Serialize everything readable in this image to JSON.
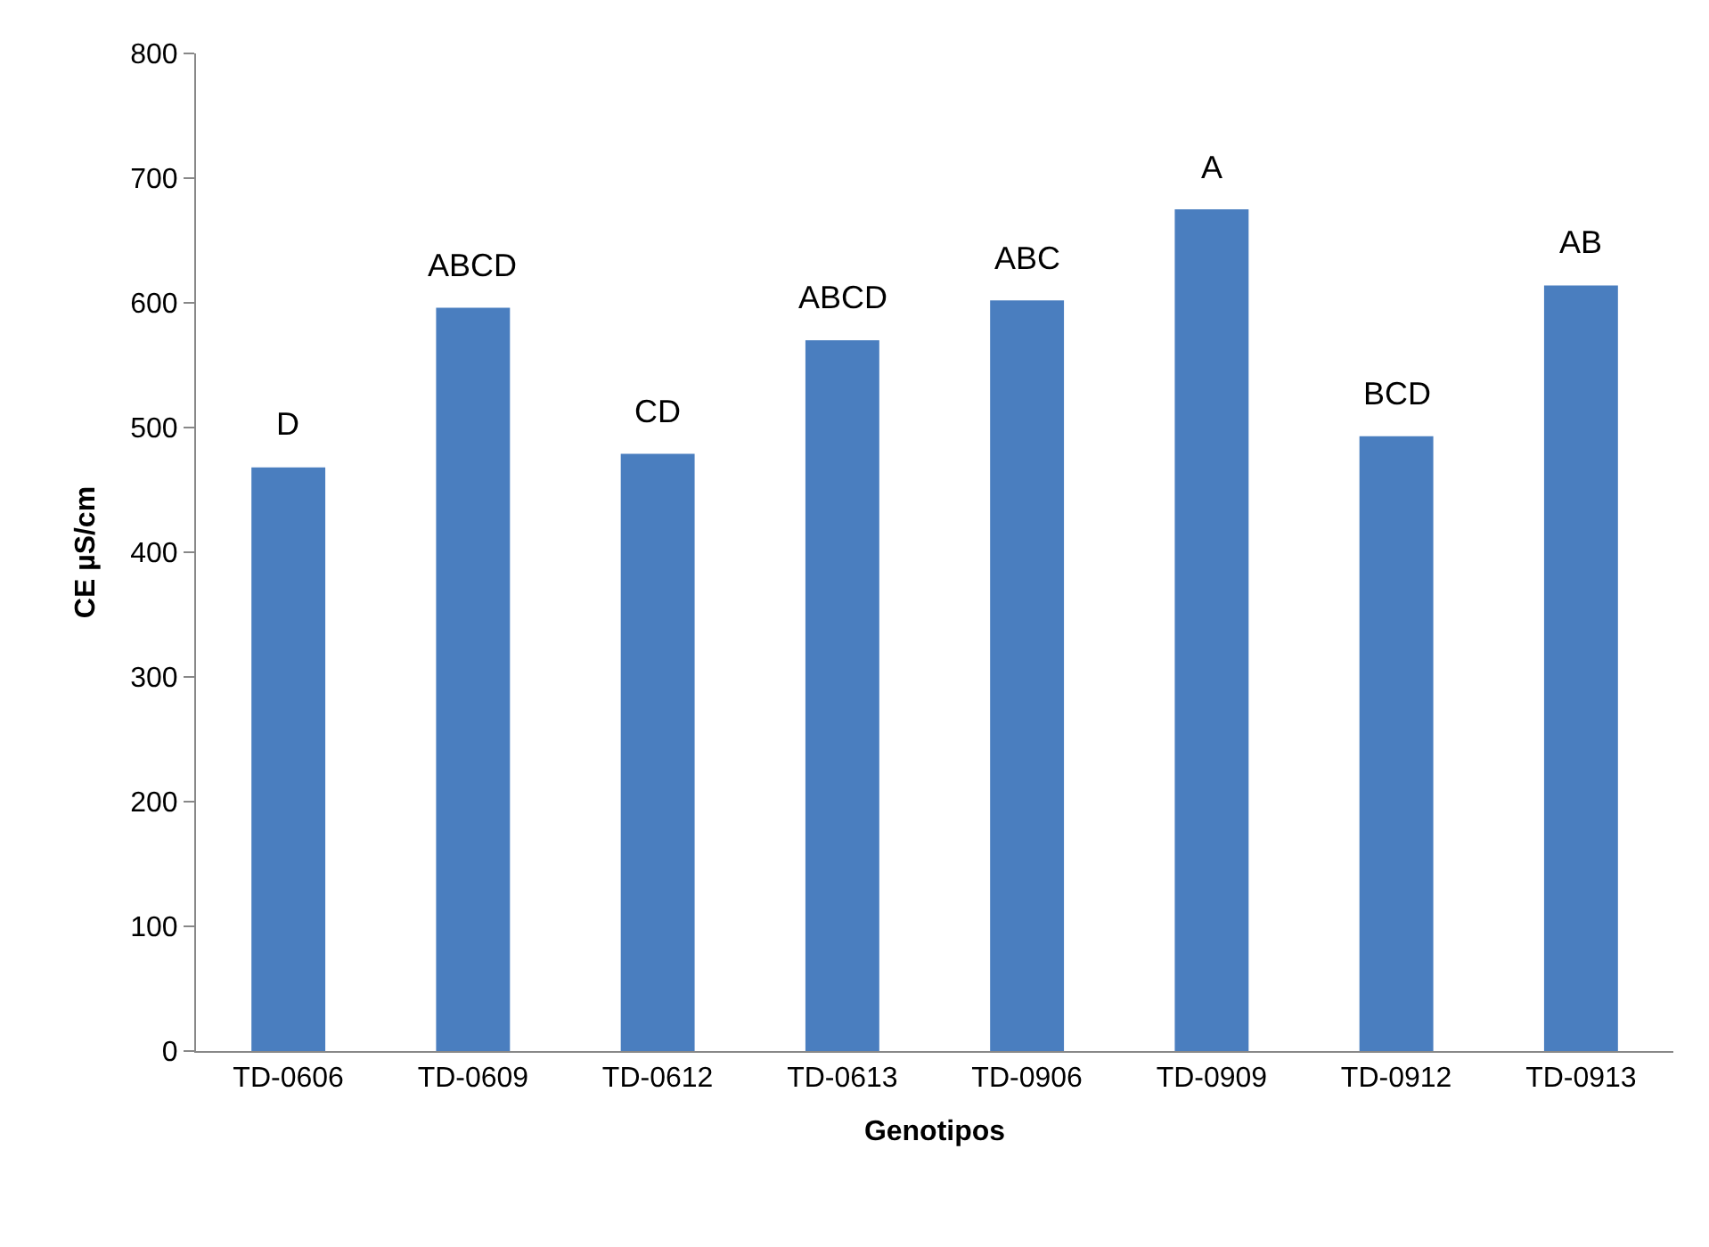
{
  "chart_data": {
    "type": "bar",
    "xlabel": "Genotipos",
    "ylabel": "CE µS/cm",
    "categories": [
      "TD-0606",
      "TD-0609",
      "TD-0612",
      "TD-0613",
      "TD-0906",
      "TD-0909",
      "TD-0912",
      "TD-0913"
    ],
    "values": [
      468,
      596,
      479,
      570,
      602,
      675,
      493,
      614
    ],
    "color": "#4a7ebf",
    "ylim": [
      0,
      800
    ],
    "yticks": [
      0,
      100,
      200,
      300,
      400,
      500,
      600,
      700,
      800
    ],
    "legend": false,
    "annotations": [
      {
        "text": "D",
        "x": "TD-0606",
        "y": 468
      },
      {
        "text": "ABCD",
        "x": "TD-0609",
        "y": 596
      },
      {
        "text": "CD",
        "x": "TD-0612",
        "y": 479
      },
      {
        "text": "ABCD",
        "x": "TD-0613",
        "y": 570
      },
      {
        "text": "ABC",
        "x": "TD-0906",
        "y": 602
      },
      {
        "text": "A",
        "x": "TD-0909",
        "y": 675
      },
      {
        "text": "BCD",
        "x": "TD-0912",
        "y": 493
      },
      {
        "text": "AB",
        "x": "TD-0913",
        "y": 614
      }
    ]
  }
}
